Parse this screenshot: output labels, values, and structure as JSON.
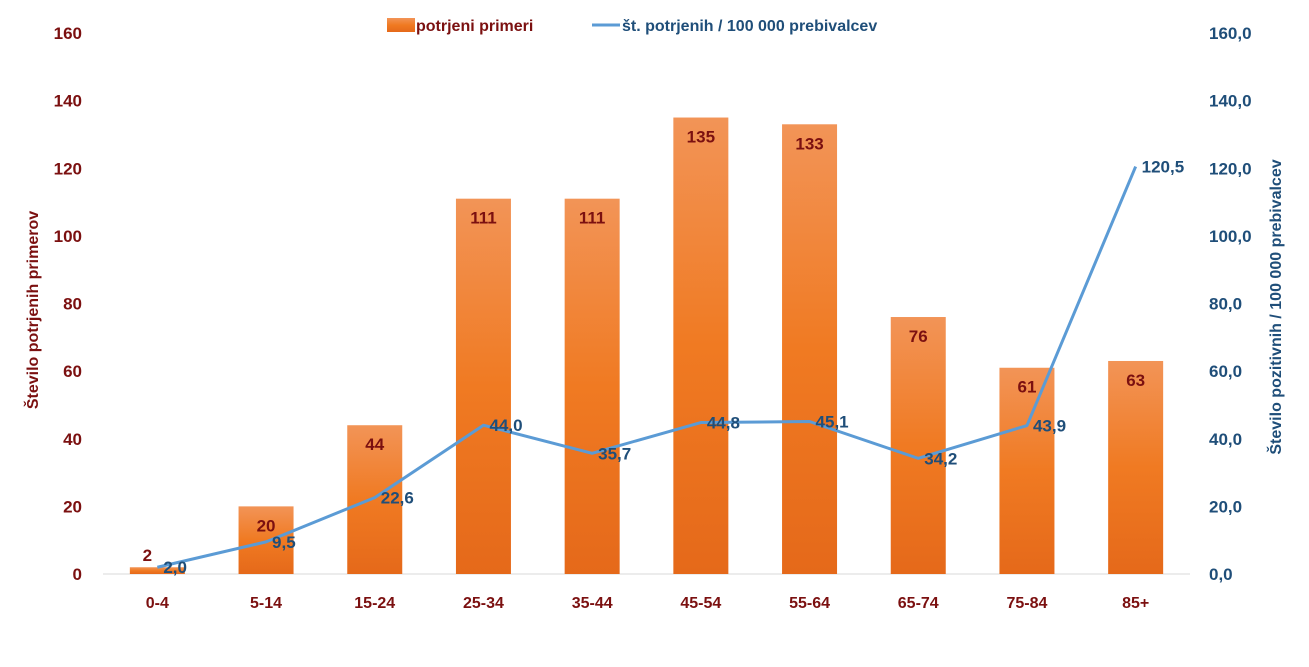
{
  "chart_data": {
    "type": "bar",
    "categories": [
      "0-4",
      "5-14",
      "15-24",
      "25-34",
      "35-44",
      "45-54",
      "55-64",
      "65-74",
      "75-84",
      "85+"
    ],
    "series": [
      {
        "name": "potrjeni primeri",
        "kind": "bar",
        "axis": "left",
        "color": "#f07f2a",
        "values": [
          2,
          20,
          44,
          111,
          111,
          135,
          133,
          76,
          61,
          63
        ],
        "labels": [
          "2",
          "20",
          "44",
          "111",
          "111",
          "135",
          "133",
          "76",
          "61",
          "63"
        ]
      },
      {
        "name": "št. potrjenih / 100 000 prebivalcev",
        "kind": "line",
        "axis": "right",
        "color": "#5b9bd5",
        "values": [
          2.0,
          9.5,
          22.6,
          44.0,
          35.7,
          44.8,
          45.1,
          34.2,
          43.9,
          120.5
        ],
        "labels": [
          "2,0",
          "9,5",
          "22,6",
          "44,0",
          "35,7",
          "44,8",
          "45,1",
          "34,2",
          "43,9",
          "120,5"
        ]
      }
    ],
    "ylabel": "Število potrjenih primerov",
    "y2label": "Število pozitivnih / 100 000 prebivalcev",
    "ylim": [
      0,
      160
    ],
    "y2lim": [
      0,
      160
    ],
    "yticks": [
      "0",
      "20",
      "40",
      "60",
      "80",
      "100",
      "120",
      "140",
      "160"
    ],
    "y2ticks": [
      "0,0",
      "20,0",
      "40,0",
      "60,0",
      "80,0",
      "100,0",
      "120,0",
      "140,0",
      "160,0"
    ],
    "legend_position": "top",
    "grid": false,
    "colors": {
      "left_axis_text": "#7b1010",
      "right_axis_text": "#1f4e79",
      "bar_label": "#7b1010",
      "line_label": "#1f4e79"
    }
  }
}
